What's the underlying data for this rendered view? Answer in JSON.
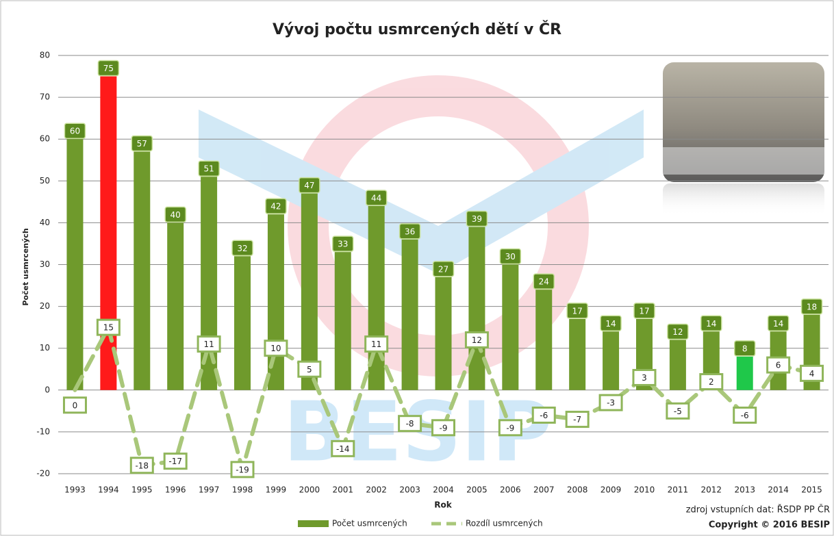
{
  "chart_data": {
    "type": "bar",
    "title": "Vývoj počtu usmrcených dětí v ČR",
    "x_label": "Rok",
    "y_label": "Počet usmrcených",
    "source": "zdroj vstupních dat: ŘSDP PP ČR",
    "copyright": "Copyright © 2016 BESIP",
    "watermark": "BESIP",
    "categories": [
      "1993",
      "1994",
      "1995",
      "1996",
      "1997",
      "1998",
      "1999",
      "2000",
      "2001",
      "2002",
      "2003",
      "2004",
      "2005",
      "2006",
      "2007",
      "2008",
      "2009",
      "2010",
      "2011",
      "2012",
      "2013",
      "2014",
      "2015"
    ],
    "series": [
      {
        "name": "Počet usmrcených",
        "type": "bar",
        "color": "#6f9a2c",
        "colors": [
          "#6f9a2c",
          "#ff1a1a",
          "#6f9a2c",
          "#6f9a2c",
          "#6f9a2c",
          "#6f9a2c",
          "#6f9a2c",
          "#6f9a2c",
          "#6f9a2c",
          "#6f9a2c",
          "#6f9a2c",
          "#6f9a2c",
          "#6f9a2c",
          "#6f9a2c",
          "#6f9a2c",
          "#6f9a2c",
          "#6f9a2c",
          "#6f9a2c",
          "#6f9a2c",
          "#6f9a2c",
          "#1fc84a",
          "#6f9a2c",
          "#6f9a2c"
        ],
        "values": [
          60,
          75,
          57,
          40,
          51,
          32,
          42,
          47,
          33,
          44,
          36,
          27,
          39,
          30,
          24,
          17,
          14,
          17,
          12,
          14,
          8,
          14,
          18
        ]
      },
      {
        "name": "Rozdíl usmrcených",
        "type": "line",
        "color": "#a9c77a",
        "values": [
          0,
          15,
          -18,
          -17,
          11,
          -19,
          10,
          5,
          -14,
          11,
          -8,
          -9,
          12,
          -9,
          -6,
          -7,
          -3,
          3,
          -5,
          2,
          -6,
          6,
          4
        ]
      }
    ],
    "ylim": [
      -20,
      80
    ],
    "yticks": [
      -20,
      -10,
      0,
      10,
      20,
      30,
      40,
      50,
      60,
      70,
      80
    ],
    "grid": true
  }
}
